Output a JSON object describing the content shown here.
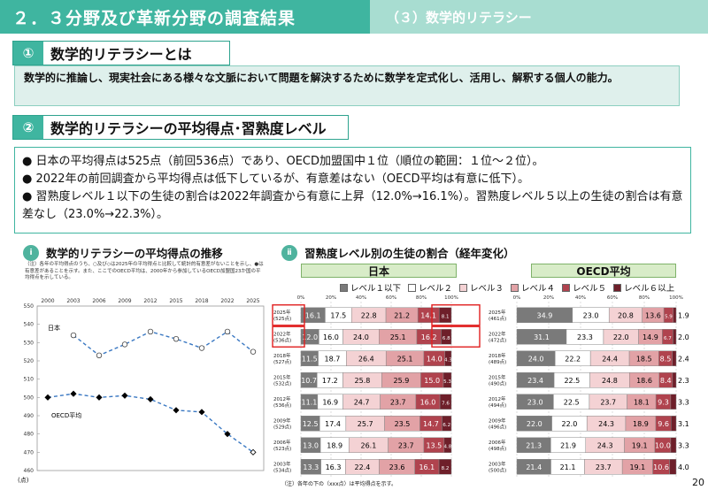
{
  "header": {
    "title": "２．３分野及び革新分野の調査結果",
    "subtitle": "（３）数学的リテラシー"
  },
  "section1": {
    "num": "①",
    "title": "数学的リテラシーとは"
  },
  "definition": "数学的に推論し、現実社会にある様々な文脈において問題を解決するために数学を定式化し、活用し、解釈する個人の能力。",
  "section2": {
    "num": "②",
    "title": "数学的リテラシーの平均得点･習熟度レベル"
  },
  "bullets": [
    "日本の平均得点は525点（前回536点）であり、OECD加盟国中１位（順位の範囲：１位～２位）。",
    "2022年の前回調査から平均得点は低下しているが、有意差はない（OECD平均は有意に低下）。",
    "習熟度レベル１以下の生徒の割合は2022年調査から有意に上昇（12.0%→16.1%）。習熟度レベル５以上の生徒の割合は有意差なし（23.0%→22.3%）。"
  ],
  "chart_left": {
    "roman": "ⅰ",
    "heading": "数学的リテラシーの平均得点の推移",
    "note": "（注）各年の平均得点のうち、○及び◇は2025年の平均得点と比較して統計的有意差がないことを示し、●は有意差があることを示す。また、ここでのOECD平均は、2000年から参加しているOECD加盟国23か国の平均得点を示している。",
    "unit_label": "(点)"
  },
  "chart_right": {
    "roman": "ⅱ",
    "heading": "習熟度レベル別の生徒の割合（経年変化）",
    "panel_japan": "日本",
    "panel_oecd": "OECD平均",
    "bottom_note": "（注）各年の下の（xxx点）は平均得点を示す。"
  },
  "page_number": "20",
  "chart_data": [
    {
      "type": "line",
      "x": [
        "2000",
        "2003",
        "2006",
        "2009",
        "2012",
        "2015",
        "2018",
        "2022",
        "2025"
      ],
      "ylim": [
        460,
        550
      ],
      "yticks": [
        460,
        470,
        480,
        490,
        500,
        510,
        520,
        530,
        540,
        550
      ],
      "series": [
        {
          "name": "日本",
          "values": [
            557,
            534,
            523,
            529,
            536,
            532,
            527,
            536,
            525
          ],
          "color": "#3a78c2"
        },
        {
          "name": "OECD平均",
          "values": [
            500,
            502,
            500,
            501,
            499,
            493,
            492,
            480,
            470
          ],
          "color": "#3a78c2"
        }
      ]
    },
    {
      "type": "bar",
      "orientation": "horizontal",
      "stacked": true,
      "xlim": [
        0,
        100
      ],
      "xticks": [
        "0%",
        "20%",
        "40%",
        "60%",
        "80%",
        "100%"
      ],
      "legend": [
        "レベル１以下",
        "レベル２",
        "レベル３",
        "レベル４",
        "レベル５",
        "レベル６以上"
      ],
      "colors": [
        "#7a7a7a",
        "#ffffff",
        "#f4d2d4",
        "#e2a2a6",
        "#b0434e",
        "#6e1f2a"
      ],
      "japan": [
        {
          "year": "2025年",
          "score": "(525点)",
          "values": [
            16.1,
            17.5,
            22.8,
            21.2,
            14.1,
            8.1
          ],
          "highlight": true
        },
        {
          "year": "2022年",
          "score": "(536点)",
          "values": [
            12.0,
            16.0,
            24.0,
            25.1,
            16.2,
            6.8
          ],
          "highlight": true
        },
        {
          "year": "2018年",
          "score": "(527点)",
          "values": [
            11.5,
            18.7,
            26.4,
            25.1,
            14.0,
            4.3
          ]
        },
        {
          "year": "2015年",
          "score": "(532点)",
          "values": [
            10.7,
            17.2,
            25.8,
            25.9,
            15.0,
            5.3
          ]
        },
        {
          "year": "2012年",
          "score": "(536点)",
          "values": [
            11.1,
            16.9,
            24.7,
            23.7,
            16.0,
            7.6
          ]
        },
        {
          "year": "2009年",
          "score": "(529点)",
          "values": [
            12.5,
            17.4,
            25.7,
            23.5,
            14.7,
            6.2
          ]
        },
        {
          "year": "2006年",
          "score": "(523点)",
          "values": [
            13.0,
            18.9,
            26.1,
            23.7,
            13.5,
            4.8
          ]
        },
        {
          "year": "2003年",
          "score": "(534点)",
          "values": [
            13.3,
            16.3,
            22.4,
            23.6,
            16.1,
            8.2
          ]
        }
      ],
      "oecd": [
        {
          "year": "2025年",
          "score": "(461点)",
          "values": [
            34.9,
            23.0,
            20.8,
            13.6,
            5.9
          ],
          "l6": "1.9"
        },
        {
          "year": "2022年",
          "score": "(472点)",
          "values": [
            31.1,
            23.3,
            22.0,
            14.9,
            6.7
          ],
          "l6": "2.0"
        },
        {
          "year": "2018年",
          "score": "(489点)",
          "values": [
            24.0,
            22.2,
            24.4,
            18.5,
            8.5
          ],
          "l6": "2.4"
        },
        {
          "year": "2015年",
          "score": "(490点)",
          "values": [
            23.4,
            22.5,
            24.8,
            18.6,
            8.4
          ],
          "l6": "2.3"
        },
        {
          "year": "2012年",
          "score": "(494点)",
          "values": [
            23.0,
            22.5,
            23.7,
            18.1,
            9.3
          ],
          "l6": "3.3"
        },
        {
          "year": "2009年",
          "score": "(496点)",
          "values": [
            22.0,
            22.0,
            24.3,
            18.9,
            9.6
          ],
          "l6": "3.1"
        },
        {
          "year": "2006年",
          "score": "(498点)",
          "values": [
            21.3,
            21.9,
            24.3,
            19.1,
            10.0
          ],
          "l6": "3.3"
        },
        {
          "year": "2003年",
          "score": "(500点)",
          "values": [
            21.4,
            21.1,
            23.7,
            19.1,
            10.6
          ],
          "l6": "4.0"
        }
      ]
    }
  ]
}
